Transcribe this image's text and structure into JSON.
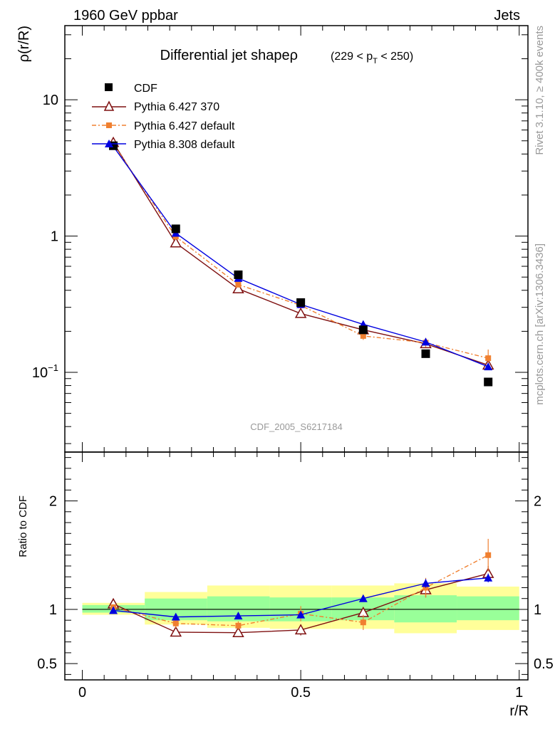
{
  "header": {
    "left": "1960 GeV ppbar",
    "right": "Jets",
    "side_top": "Rivet 3.1.10, ≥ 400k events",
    "side_bottom": "mcplots.cern.ch [arXiv:1306.3436]"
  },
  "colors": {
    "cdf": "#000000",
    "p370": "#7f1010",
    "pdef": "#f08030",
    "p8": "#0000e0",
    "band_outer": "#ffff99",
    "band_inner": "#99ff99",
    "watermark": "#999999"
  },
  "chart_data": [
    {
      "type": "line",
      "title": "Differential jet shape",
      "title_symbol": "ρ",
      "title_range": "(229 < p",
      "title_sub": "T",
      "title_range_end": " < 250)",
      "watermark": "CDF_2005_S6217184",
      "ylabel": "ρ(r/R)",
      "yscale": "log",
      "ylim": [
        0.026,
        35
      ],
      "xlim": [
        -0.04,
        1.02
      ],
      "yticks": [
        {
          "value": 0.1,
          "label": "10",
          "sup": "−1"
        },
        {
          "value": 1,
          "label": "1",
          "sup": ""
        },
        {
          "value": 10,
          "label": "10",
          "sup": ""
        }
      ],
      "x": [
        0.071,
        0.214,
        0.357,
        0.5,
        0.643,
        0.786,
        0.929
      ],
      "series": [
        {
          "name": "CDF",
          "key": "cdf",
          "marker": "square",
          "values": [
            4.6,
            1.13,
            0.52,
            0.325,
            0.205,
            0.137,
            0.085
          ],
          "errors": [
            0.05,
            0.02,
            0.01,
            0.005,
            0.004,
            0.004,
            0.003
          ]
        },
        {
          "name": "Pythia 6.427 370",
          "key": "p370",
          "marker": "triangle-open",
          "dash": "",
          "values": [
            4.85,
            0.89,
            0.41,
            0.27,
            0.205,
            0.162,
            0.113
          ],
          "errors": [
            0.05,
            0.02,
            0.01,
            0.008,
            0.008,
            0.008,
            0.006
          ]
        },
        {
          "name": "Pythia 6.427 default",
          "key": "pdef",
          "marker": "square-small",
          "dash": "6,3,2,3",
          "values": [
            4.7,
            0.99,
            0.44,
            0.31,
            0.185,
            0.165,
            0.127
          ],
          "errors": [
            0.05,
            0.02,
            0.012,
            0.01,
            0.012,
            0.012,
            0.02
          ]
        },
        {
          "name": "Pythia 8.308 default",
          "key": "p8",
          "marker": "triangle",
          "dash": "",
          "values": [
            4.55,
            1.05,
            0.49,
            0.315,
            0.225,
            0.167,
            0.11
          ],
          "errors": [
            0.05,
            0.02,
            0.01,
            0.008,
            0.008,
            0.007,
            0.005
          ]
        }
      ]
    },
    {
      "type": "line",
      "ylabel": "Ratio to CDF",
      "xlabel": "r/R",
      "ylim": [
        0.35,
        2.45
      ],
      "xlim": [
        -0.04,
        1.02
      ],
      "yticks": [
        {
          "value": 0.5,
          "label": "0.5"
        },
        {
          "value": 1,
          "label": "1"
        },
        {
          "value": 2,
          "label": "2"
        }
      ],
      "xticks": [
        {
          "value": 0,
          "label": "0"
        },
        {
          "value": 0.5,
          "label": "0.5"
        },
        {
          "value": 1,
          "label": "1"
        }
      ],
      "bins": [
        {
          "lo": 0.0,
          "hi": 0.143,
          "outer": [
            0.95,
            1.06
          ],
          "inner": [
            0.97,
            1.04
          ]
        },
        {
          "lo": 0.143,
          "hi": 0.286,
          "outer": [
            0.86,
            1.16
          ],
          "inner": [
            0.9,
            1.1
          ]
        },
        {
          "lo": 0.286,
          "hi": 0.429,
          "outer": [
            0.83,
            1.22
          ],
          "inner": [
            0.89,
            1.12
          ]
        },
        {
          "lo": 0.429,
          "hi": 0.571,
          "outer": [
            0.82,
            1.22
          ],
          "inner": [
            0.89,
            1.11
          ]
        },
        {
          "lo": 0.571,
          "hi": 0.714,
          "outer": [
            0.82,
            1.22
          ],
          "inner": [
            0.9,
            1.11
          ]
        },
        {
          "lo": 0.714,
          "hi": 0.857,
          "outer": [
            0.78,
            1.24
          ],
          "inner": [
            0.88,
            1.13
          ]
        },
        {
          "lo": 0.857,
          "hi": 1.0,
          "outer": [
            0.81,
            1.21
          ],
          "inner": [
            0.9,
            1.12
          ]
        }
      ],
      "x": [
        0.071,
        0.214,
        0.357,
        0.5,
        0.643,
        0.786,
        0.929
      ],
      "series": [
        {
          "name": "Pythia 6.427 370",
          "key": "p370",
          "marker": "triangle-open",
          "dash": "",
          "values": [
            1.05,
            0.79,
            0.785,
            0.81,
            0.97,
            1.18,
            1.33
          ],
          "errors": [
            0.01,
            0.03,
            0.04,
            0.05,
            0.04,
            0.07,
            0.07
          ]
        },
        {
          "name": "Pythia 6.427 default",
          "key": "pdef",
          "marker": "square-small",
          "dash": "6,3,2,3",
          "values": [
            1.02,
            0.87,
            0.85,
            0.96,
            0.88,
            1.2,
            1.5
          ],
          "errors": [
            0.01,
            0.04,
            0.04,
            0.07,
            0.07,
            0.09,
            0.15
          ]
        },
        {
          "name": "Pythia 8.308 default",
          "key": "p8",
          "marker": "triangle",
          "dash": "",
          "values": [
            0.99,
            0.93,
            0.94,
            0.95,
            1.1,
            1.24,
            1.29
          ],
          "errors": [
            0.01,
            0.02,
            0.02,
            0.02,
            0.03,
            0.04,
            0.04
          ]
        }
      ]
    }
  ]
}
